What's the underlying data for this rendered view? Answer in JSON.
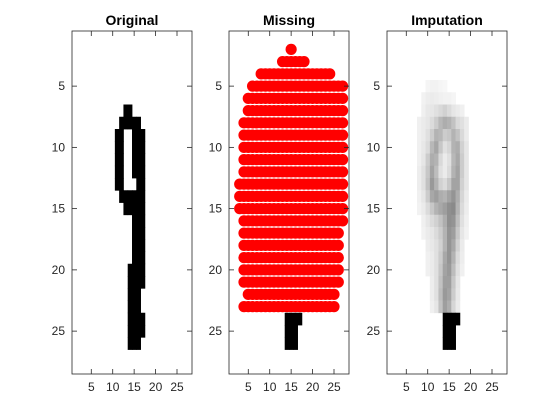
{
  "figure": {
    "background": "#ffffff"
  },
  "chart_data": [
    {
      "type": "heatmap",
      "title": "Original",
      "xlim": [
        0.5,
        28.5
      ],
      "ylim": [
        0.5,
        28.5
      ],
      "y_direction": "reverse",
      "xticks": [
        5,
        10,
        15,
        20,
        25
      ],
      "yticks": [
        5,
        10,
        15,
        20,
        25
      ],
      "colormap": "gray-inverted",
      "rows": [
        [
          7,
          13,
          14
        ],
        [
          8,
          12,
          16
        ],
        [
          9,
          11,
          17
        ],
        [
          10,
          11,
          17
        ],
        [
          11,
          11,
          17
        ],
        [
          12,
          11,
          17
        ],
        [
          13,
          11,
          17
        ],
        [
          14,
          12,
          17
        ],
        [
          15,
          13,
          17
        ],
        [
          16,
          15,
          17
        ],
        [
          17,
          15,
          17
        ],
        [
          18,
          15,
          17
        ],
        [
          19,
          15,
          17
        ],
        [
          20,
          14,
          17
        ],
        [
          21,
          14,
          17
        ],
        [
          22,
          14,
          16
        ],
        [
          23,
          14,
          16
        ],
        [
          24,
          14,
          17
        ],
        [
          25,
          14,
          17
        ],
        [
          26,
          14,
          16
        ]
      ],
      "holes": [
        [
          9,
          13,
          14
        ],
        [
          10,
          13,
          14
        ],
        [
          11,
          13,
          14
        ],
        [
          12,
          13,
          14
        ],
        [
          13,
          13,
          15
        ]
      ]
    },
    {
      "type": "scatter",
      "title": "Missing",
      "xlim": [
        0.5,
        28.5
      ],
      "ylim": [
        0.5,
        28.5
      ],
      "y_direction": "reverse",
      "xticks": [
        5,
        10,
        15,
        20,
        25
      ],
      "yticks": [
        5,
        10,
        15,
        20,
        25
      ],
      "marker_color": "#ff0000",
      "missing_rows": [
        [
          2,
          15,
          15
        ],
        [
          3,
          13,
          18
        ],
        [
          4,
          8,
          24
        ],
        [
          5,
          6,
          27
        ],
        [
          6,
          5,
          27
        ],
        [
          7,
          5,
          27
        ],
        [
          8,
          4,
          27
        ],
        [
          9,
          4,
          27
        ],
        [
          10,
          4,
          27
        ],
        [
          11,
          4,
          27
        ],
        [
          12,
          4,
          27
        ],
        [
          13,
          3,
          27
        ],
        [
          14,
          3,
          27
        ],
        [
          15,
          3,
          27
        ],
        [
          16,
          4,
          27
        ],
        [
          17,
          4,
          26
        ],
        [
          18,
          4,
          26
        ],
        [
          19,
          4,
          26
        ],
        [
          20,
          4,
          26
        ],
        [
          21,
          4,
          26
        ],
        [
          22,
          5,
          25
        ],
        [
          23,
          4,
          25
        ]
      ],
      "observed_rows": [
        [
          24,
          14,
          17
        ],
        [
          25,
          14,
          16
        ],
        [
          26,
          14,
          16
        ]
      ]
    },
    {
      "type": "heatmap",
      "title": "Imputation",
      "xlim": [
        0.5,
        28.5
      ],
      "ylim": [
        0.5,
        28.5
      ],
      "y_direction": "reverse",
      "xticks": [
        5,
        10,
        15,
        20,
        25
      ],
      "yticks": [
        5,
        10,
        15,
        20,
        25
      ],
      "colormap": "gray-inverted",
      "blur_cells": [
        [
          5,
          10,
          0.04
        ],
        [
          5,
          11,
          0.05
        ],
        [
          5,
          12,
          0.05
        ],
        [
          5,
          13,
          0.04
        ],
        [
          5,
          14,
          0.03
        ],
        [
          6,
          9,
          0.05
        ],
        [
          6,
          10,
          0.07
        ],
        [
          6,
          11,
          0.08
        ],
        [
          6,
          12,
          0.07
        ],
        [
          6,
          13,
          0.06
        ],
        [
          6,
          14,
          0.05
        ],
        [
          6,
          15,
          0.05
        ],
        [
          6,
          16,
          0.04
        ],
        [
          7,
          9,
          0.06
        ],
        [
          7,
          10,
          0.09
        ],
        [
          7,
          11,
          0.1
        ],
        [
          7,
          12,
          0.12
        ],
        [
          7,
          13,
          0.15
        ],
        [
          7,
          14,
          0.18
        ],
        [
          7,
          15,
          0.14
        ],
        [
          7,
          16,
          0.1
        ],
        [
          7,
          17,
          0.08
        ],
        [
          7,
          18,
          0.06
        ],
        [
          8,
          8,
          0.06
        ],
        [
          8,
          9,
          0.08
        ],
        [
          8,
          10,
          0.1
        ],
        [
          8,
          11,
          0.14
        ],
        [
          8,
          12,
          0.2
        ],
        [
          8,
          13,
          0.28
        ],
        [
          8,
          14,
          0.32
        ],
        [
          8,
          15,
          0.3
        ],
        [
          8,
          16,
          0.24
        ],
        [
          8,
          17,
          0.15
        ],
        [
          8,
          18,
          0.12
        ],
        [
          8,
          19,
          0.08
        ],
        [
          9,
          8,
          0.06
        ],
        [
          9,
          9,
          0.08
        ],
        [
          9,
          10,
          0.12
        ],
        [
          9,
          11,
          0.2
        ],
        [
          9,
          12,
          0.3
        ],
        [
          9,
          13,
          0.28
        ],
        [
          9,
          14,
          0.2
        ],
        [
          9,
          15,
          0.22
        ],
        [
          9,
          16,
          0.3
        ],
        [
          9,
          17,
          0.24
        ],
        [
          9,
          18,
          0.15
        ],
        [
          9,
          19,
          0.08
        ],
        [
          10,
          8,
          0.06
        ],
        [
          10,
          9,
          0.09
        ],
        [
          10,
          10,
          0.14
        ],
        [
          10,
          11,
          0.28
        ],
        [
          10,
          12,
          0.35
        ],
        [
          10,
          13,
          0.22
        ],
        [
          10,
          14,
          0.12
        ],
        [
          10,
          15,
          0.16
        ],
        [
          10,
          16,
          0.3
        ],
        [
          10,
          17,
          0.32
        ],
        [
          10,
          18,
          0.18
        ],
        [
          10,
          19,
          0.1
        ],
        [
          11,
          8,
          0.06
        ],
        [
          11,
          9,
          0.1
        ],
        [
          11,
          10,
          0.2
        ],
        [
          11,
          11,
          0.32
        ],
        [
          11,
          12,
          0.3
        ],
        [
          11,
          13,
          0.15
        ],
        [
          11,
          14,
          0.08
        ],
        [
          11,
          15,
          0.12
        ],
        [
          11,
          16,
          0.28
        ],
        [
          11,
          17,
          0.34
        ],
        [
          11,
          18,
          0.2
        ],
        [
          11,
          19,
          0.1
        ],
        [
          12,
          8,
          0.07
        ],
        [
          12,
          9,
          0.12
        ],
        [
          12,
          10,
          0.22
        ],
        [
          12,
          11,
          0.36
        ],
        [
          12,
          12,
          0.26
        ],
        [
          12,
          13,
          0.12
        ],
        [
          12,
          14,
          0.08
        ],
        [
          12,
          15,
          0.14
        ],
        [
          12,
          16,
          0.3
        ],
        [
          12,
          17,
          0.36
        ],
        [
          12,
          18,
          0.2
        ],
        [
          12,
          19,
          0.1
        ],
        [
          13,
          8,
          0.07
        ],
        [
          13,
          9,
          0.12
        ],
        [
          13,
          10,
          0.24
        ],
        [
          13,
          11,
          0.4
        ],
        [
          13,
          12,
          0.3
        ],
        [
          13,
          13,
          0.18
        ],
        [
          13,
          14,
          0.14
        ],
        [
          13,
          15,
          0.22
        ],
        [
          13,
          16,
          0.36
        ],
        [
          13,
          17,
          0.36
        ],
        [
          13,
          18,
          0.18
        ],
        [
          13,
          19,
          0.1
        ],
        [
          14,
          8,
          0.06
        ],
        [
          14,
          9,
          0.1
        ],
        [
          14,
          10,
          0.2
        ],
        [
          14,
          11,
          0.34
        ],
        [
          14,
          12,
          0.38
        ],
        [
          14,
          13,
          0.32
        ],
        [
          14,
          14,
          0.3
        ],
        [
          14,
          15,
          0.36
        ],
        [
          14,
          16,
          0.42
        ],
        [
          14,
          17,
          0.32
        ],
        [
          14,
          18,
          0.16
        ],
        [
          14,
          19,
          0.08
        ],
        [
          15,
          8,
          0.05
        ],
        [
          15,
          9,
          0.08
        ],
        [
          15,
          10,
          0.14
        ],
        [
          15,
          11,
          0.22
        ],
        [
          15,
          12,
          0.3
        ],
        [
          15,
          13,
          0.34
        ],
        [
          15,
          14,
          0.38
        ],
        [
          15,
          15,
          0.44
        ],
        [
          15,
          16,
          0.46
        ],
        [
          15,
          17,
          0.3
        ],
        [
          15,
          18,
          0.14
        ],
        [
          15,
          19,
          0.07
        ],
        [
          16,
          9,
          0.06
        ],
        [
          16,
          10,
          0.1
        ],
        [
          16,
          11,
          0.14
        ],
        [
          16,
          12,
          0.18
        ],
        [
          16,
          13,
          0.24
        ],
        [
          16,
          14,
          0.32
        ],
        [
          16,
          15,
          0.44
        ],
        [
          16,
          16,
          0.42
        ],
        [
          16,
          17,
          0.26
        ],
        [
          16,
          18,
          0.12
        ],
        [
          16,
          19,
          0.06
        ],
        [
          17,
          9,
          0.05
        ],
        [
          17,
          10,
          0.08
        ],
        [
          17,
          11,
          0.1
        ],
        [
          17,
          12,
          0.14
        ],
        [
          17,
          13,
          0.2
        ],
        [
          17,
          14,
          0.3
        ],
        [
          17,
          15,
          0.42
        ],
        [
          17,
          16,
          0.38
        ],
        [
          17,
          17,
          0.22
        ],
        [
          17,
          18,
          0.1
        ],
        [
          17,
          19,
          0.05
        ],
        [
          18,
          10,
          0.07
        ],
        [
          18,
          11,
          0.09
        ],
        [
          18,
          12,
          0.12
        ],
        [
          18,
          13,
          0.18
        ],
        [
          18,
          14,
          0.3
        ],
        [
          18,
          15,
          0.42
        ],
        [
          18,
          16,
          0.34
        ],
        [
          18,
          17,
          0.18
        ],
        [
          18,
          18,
          0.08
        ],
        [
          19,
          10,
          0.06
        ],
        [
          19,
          11,
          0.08
        ],
        [
          19,
          12,
          0.12
        ],
        [
          19,
          13,
          0.2
        ],
        [
          19,
          14,
          0.34
        ],
        [
          19,
          15,
          0.42
        ],
        [
          19,
          16,
          0.3
        ],
        [
          19,
          17,
          0.14
        ],
        [
          19,
          18,
          0.07
        ],
        [
          20,
          10,
          0.06
        ],
        [
          20,
          11,
          0.08
        ],
        [
          20,
          12,
          0.12
        ],
        [
          20,
          13,
          0.22
        ],
        [
          20,
          14,
          0.36
        ],
        [
          20,
          15,
          0.4
        ],
        [
          20,
          16,
          0.26
        ],
        [
          20,
          17,
          0.12
        ],
        [
          20,
          18,
          0.06
        ],
        [
          21,
          11,
          0.07
        ],
        [
          21,
          12,
          0.12
        ],
        [
          21,
          13,
          0.24
        ],
        [
          21,
          14,
          0.38
        ],
        [
          21,
          15,
          0.38
        ],
        [
          21,
          16,
          0.22
        ],
        [
          21,
          17,
          0.1
        ],
        [
          22,
          11,
          0.07
        ],
        [
          22,
          12,
          0.12
        ],
        [
          22,
          13,
          0.26
        ],
        [
          22,
          14,
          0.4
        ],
        [
          22,
          15,
          0.36
        ],
        [
          22,
          16,
          0.2
        ],
        [
          22,
          17,
          0.09
        ],
        [
          23,
          11,
          0.06
        ],
        [
          23,
          12,
          0.1
        ],
        [
          23,
          13,
          0.24
        ],
        [
          23,
          14,
          0.38
        ],
        [
          23,
          15,
          0.32
        ],
        [
          23,
          16,
          0.16
        ],
        [
          23,
          17,
          0.08
        ]
      ],
      "solid_rows": [
        [
          24,
          14,
          17
        ],
        [
          25,
          14,
          16
        ],
        [
          26,
          14,
          16
        ]
      ]
    }
  ]
}
